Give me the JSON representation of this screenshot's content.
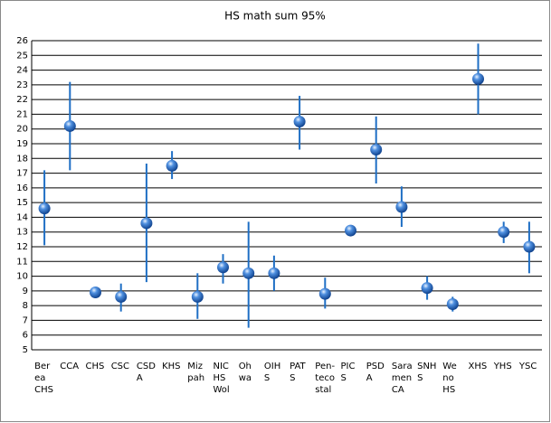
{
  "chart_data": {
    "type": "errorpoint",
    "title": "HS math sum 95%",
    "categories": [
      [
        "Ber",
        "ea",
        "CHS"
      ],
      [
        "CCA"
      ],
      [
        "CHS"
      ],
      [
        "CSC"
      ],
      [
        "CSD",
        "A"
      ],
      [
        "KHS"
      ],
      [
        "Miz",
        "pah"
      ],
      [
        "NIC",
        "HS",
        "Wol"
      ],
      [
        "Oh",
        "wa"
      ],
      [
        "OIH",
        "S"
      ],
      [
        "PAT",
        "S"
      ],
      [
        "Pen-",
        "teco",
        "stal"
      ],
      [
        "PIC",
        "S"
      ],
      [
        "PSD",
        "A"
      ],
      [
        "Sara",
        "men",
        "CA"
      ],
      [
        "SNH",
        "S"
      ],
      [
        "We",
        "no",
        "HS"
      ],
      [
        "XHS"
      ],
      [
        "YHS"
      ],
      [
        "YSC"
      ]
    ],
    "values": [
      14.6,
      20.2,
      8.9,
      8.6,
      13.6,
      17.5,
      8.6,
      10.6,
      10.2,
      10.2,
      20.5,
      8.8,
      13.1,
      18.6,
      14.7,
      9.2,
      8.1,
      23.4,
      13.0,
      12.0
    ],
    "low": [
      12.1,
      17.2,
      8.8,
      7.6,
      9.6,
      16.6,
      7.1,
      9.5,
      6.5,
      9.0,
      18.6,
      7.8,
      13.0,
      16.3,
      13.35,
      8.4,
      7.6,
      21.0,
      12.25,
      10.2
    ],
    "high": [
      17.2,
      23.2,
      9.0,
      9.5,
      17.65,
      18.5,
      10.2,
      11.5,
      13.7,
      11.4,
      22.25,
      9.9,
      13.2,
      20.85,
      16.1,
      10.0,
      8.6,
      25.8,
      13.7,
      13.7
    ],
    "color": "#1f6fc5",
    "ylim": [
      5,
      26
    ],
    "yticks": [
      5,
      6,
      7,
      8,
      9,
      10,
      11,
      12,
      13,
      14,
      15,
      16,
      17,
      18,
      19,
      20,
      21,
      22,
      23,
      24,
      25,
      26
    ],
    "grid": true
  }
}
